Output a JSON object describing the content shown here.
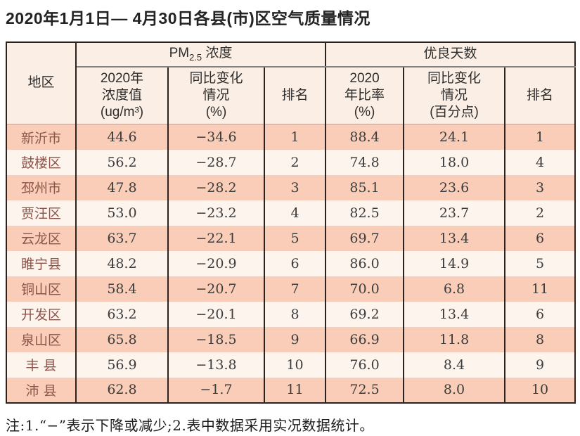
{
  "title": "2020年1月1日— 4月30日各县(市)区空气质量情况",
  "table": {
    "region_header": "地区",
    "pm_group": {
      "prefix": "PM",
      "sub": "2.5",
      "suffix": " 浓度"
    },
    "good_days_group": "优良天数",
    "pm_subheaders": [
      "2020年\n浓度值\n(ug/m³)",
      "同比变化\n情况\n(%)",
      "排名"
    ],
    "good_subheaders": [
      "2020\n年比率\n(%)",
      "同比变化\n情况\n(百分点)",
      "排名"
    ],
    "rows": [
      {
        "region": "新沂市",
        "pm_value": "44.6",
        "pm_change": "−34.6",
        "pm_rank": "1",
        "good_rate": "88.4",
        "good_change": "24.1",
        "good_rank": "1"
      },
      {
        "region": "鼓楼区",
        "pm_value": "56.2",
        "pm_change": "−28.7",
        "pm_rank": "2",
        "good_rate": "74.8",
        "good_change": "18.0",
        "good_rank": "4"
      },
      {
        "region": "邳州市",
        "pm_value": "47.8",
        "pm_change": "−28.2",
        "pm_rank": "3",
        "good_rate": "85.1",
        "good_change": "23.6",
        "good_rank": "3"
      },
      {
        "region": "贾汪区",
        "pm_value": "53.0",
        "pm_change": "−23.2",
        "pm_rank": "4",
        "good_rate": "82.5",
        "good_change": "23.7",
        "good_rank": "2"
      },
      {
        "region": "云龙区",
        "pm_value": "63.7",
        "pm_change": "−22.1",
        "pm_rank": "5",
        "good_rate": "69.7",
        "good_change": "13.4",
        "good_rank": "6"
      },
      {
        "region": "睢宁县",
        "pm_value": "48.2",
        "pm_change": "−20.9",
        "pm_rank": "6",
        "good_rate": "86.0",
        "good_change": "14.9",
        "good_rank": "5"
      },
      {
        "region": "铜山区",
        "pm_value": "58.4",
        "pm_change": "−20.7",
        "pm_rank": "7",
        "good_rate": "70.0",
        "good_change": "6.8",
        "good_rank": "11"
      },
      {
        "region": "开发区",
        "pm_value": "63.2",
        "pm_change": "−20.1",
        "pm_rank": "8",
        "good_rate": "69.2",
        "good_change": "13.4",
        "good_rank": "6"
      },
      {
        "region": "泉山区",
        "pm_value": "65.8",
        "pm_change": "−18.5",
        "pm_rank": "9",
        "good_rate": "66.9",
        "good_change": "11.8",
        "good_rank": "8"
      },
      {
        "region": "丰 县",
        "pm_value": "56.9",
        "pm_change": "−13.8",
        "pm_rank": "10",
        "good_rate": "76.0",
        "good_change": "8.4",
        "good_rank": "9"
      },
      {
        "region": "沛 县",
        "pm_value": "62.8",
        "pm_change": "−1.7",
        "pm_rank": "11",
        "good_rate": "72.5",
        "good_change": "8.0",
        "good_rank": "10"
      }
    ]
  },
  "note": "注:1.“−”表示下降或减少;2.表中数据采用实况数据统计。",
  "colors": {
    "row_salmon": "#f9cdb7",
    "row_light": "#fdf4ee",
    "header_bg": "#fbeee4",
    "border_dark": "#2a231f",
    "region_text": "#8d544a"
  },
  "chart_data": {
    "type": "table",
    "title": "2020年1月1日— 4月30日各县(市)区空气质量情况",
    "column_groups": [
      "地区",
      "PM2.5浓度",
      "优良天数"
    ],
    "columns": [
      "地区",
      "2020年浓度值(ug/m³)",
      "同比变化情况(%)",
      "排名",
      "2020年比率(%)",
      "同比变化情况(百分点)",
      "排名"
    ],
    "rows": [
      [
        "新沂市",
        44.6,
        -34.6,
        1,
        88.4,
        24.1,
        1
      ],
      [
        "鼓楼区",
        56.2,
        -28.7,
        2,
        74.8,
        18.0,
        4
      ],
      [
        "邳州市",
        47.8,
        -28.2,
        3,
        85.1,
        23.6,
        3
      ],
      [
        "贾汪区",
        53.0,
        -23.2,
        4,
        82.5,
        23.7,
        2
      ],
      [
        "云龙区",
        63.7,
        -22.1,
        5,
        69.7,
        13.4,
        6
      ],
      [
        "睢宁县",
        48.2,
        -20.9,
        6,
        86.0,
        14.9,
        5
      ],
      [
        "铜山区",
        58.4,
        -20.7,
        7,
        70.0,
        6.8,
        11
      ],
      [
        "开发区",
        63.2,
        -20.1,
        8,
        69.2,
        13.4,
        6
      ],
      [
        "泉山区",
        65.8,
        -18.5,
        9,
        66.9,
        11.8,
        8
      ],
      [
        "丰县",
        56.9,
        -13.8,
        10,
        76.0,
        8.4,
        9
      ],
      [
        "沛县",
        62.8,
        -1.7,
        11,
        72.5,
        8.0,
        10
      ]
    ],
    "note": "注:1.“−”表示下降或减少;2.表中数据采用实况数据统计。"
  }
}
